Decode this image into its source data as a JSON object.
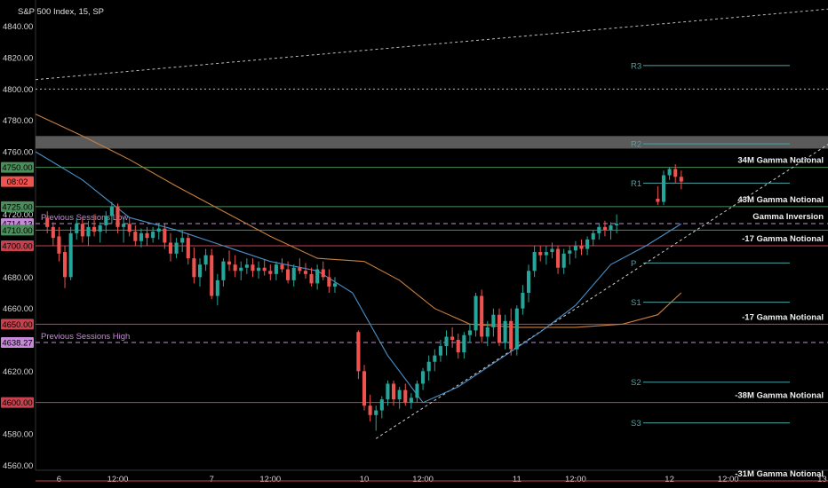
{
  "header": {
    "symbol_title": "S&P 500 Index, 15, SP"
  },
  "colors": {
    "bg": "#000000",
    "up": "#26a69a",
    "down": "#ef5350",
    "ma_fast": "#4a90c8",
    "ma_slow": "#c8803e",
    "pivot": "#4fa3a3",
    "gamma_green": "#4a8f5a",
    "gamma_red": "#c8424e",
    "session_label": "#c58bd6"
  },
  "price_axis": {
    "min": 4550,
    "max": 4850,
    "ticks": [
      "4840.00",
      "4820.00",
      "4800.00",
      "4780.00",
      "4760.00",
      "4740.00",
      "4720.00",
      "4700.00",
      "4680.00",
      "4660.00",
      "4640.00",
      "4620.00",
      "4600.00",
      "4580.00",
      "4560.00"
    ],
    "tick_values": [
      4840,
      4820,
      4800,
      4780,
      4760,
      4740,
      4720,
      4700,
      4680,
      4660,
      4640,
      4620,
      4600,
      4580,
      4560
    ]
  },
  "time_axis": {
    "ticks": [
      {
        "label": "6",
        "idx": 2
      },
      {
        "label": "12:00",
        "idx": 12
      },
      {
        "label": "7",
        "idx": 28
      },
      {
        "label": "12:00",
        "idx": 38
      },
      {
        "label": "10",
        "idx": 54
      },
      {
        "label": "12:00",
        "idx": 64
      },
      {
        "label": "11",
        "idx": 80
      },
      {
        "label": "12:00",
        "idx": 90
      },
      {
        "label": "12",
        "idx": 106
      },
      {
        "label": "12:00",
        "idx": 116
      },
      {
        "label": "13",
        "idx": 132
      }
    ]
  },
  "price_badges": [
    {
      "value": 4750.0,
      "text": "4750.00",
      "color": "#4a8f5a"
    },
    {
      "value": 4741.0,
      "text": "08:02",
      "color": "#ef5350"
    },
    {
      "value": 4725.0,
      "text": "4725.00",
      "color": "#4a8f5a"
    },
    {
      "value": 4714.13,
      "text": "4714.13",
      "color": "#c58bd6"
    },
    {
      "value": 4710.0,
      "text": "4710.00",
      "color": "#4a8f5a"
    },
    {
      "value": 4700.0,
      "text": "4700.00",
      "color": "#c8424e"
    },
    {
      "value": 4650.0,
      "text": "4650.00",
      "color": "#c8424e"
    },
    {
      "value": 4638.27,
      "text": "4638.27",
      "color": "#c58bd6"
    },
    {
      "value": 4600.0,
      "text": "4600.00",
      "color": "#c8424e"
    }
  ],
  "gamma_levels": [
    {
      "value": 4750,
      "label": "34M Gamma Notional",
      "color": "#4a8f5a"
    },
    {
      "value": 4725,
      "label": "43M Gamma Notional",
      "color": "#4a8f5a"
    },
    {
      "value": 4714.13,
      "label": "Gamma Inversion",
      "color": "#c58bd6",
      "dashed": true
    },
    {
      "value": 4710,
      "label": "",
      "color": "#4a8f5a"
    },
    {
      "value": 4700,
      "label": "-17 Gamma Notional",
      "color": "#c8424e"
    },
    {
      "value": 4650,
      "label": "-17 Gamma Notional",
      "color": "#c8424e"
    },
    {
      "value": 4600,
      "label": "-38M Gamma Notional",
      "color": "#c8424e"
    },
    {
      "value": 4550,
      "label": "-31M Gamma Notional",
      "color": "#c8424e"
    }
  ],
  "session_lines": [
    {
      "value": 4714.13,
      "label": "Previous Sessions Low"
    },
    {
      "value": 4638.27,
      "label": "Previous Sessions High"
    }
  ],
  "pivots": [
    {
      "value": 4815,
      "label": "R3"
    },
    {
      "value": 4765,
      "label": "R2"
    },
    {
      "value": 4740,
      "label": "R1"
    },
    {
      "value": 4689,
      "label": "P"
    },
    {
      "value": 4664,
      "label": "S1"
    },
    {
      "value": 4613,
      "label": "S2"
    },
    {
      "value": 4587,
      "label": "S3"
    }
  ],
  "chart_data": {
    "type": "candlestick",
    "title": "S&P 500 Index, 15, SP",
    "ylim": [
      4550,
      4850
    ],
    "x_range_idx": [
      -2,
      133
    ],
    "candles": [
      [
        4718,
        4722,
        4708,
        4712
      ],
      [
        4712,
        4715,
        4700,
        4705
      ],
      [
        4706,
        4712,
        4690,
        4695
      ],
      [
        4696,
        4700,
        4673,
        4680
      ],
      [
        4680,
        4712,
        4678,
        4708
      ],
      [
        4708,
        4718,
        4704,
        4714
      ],
      [
        4714,
        4718,
        4702,
        4706
      ],
      [
        4706,
        4716,
        4700,
        4712
      ],
      [
        4712,
        4720,
        4706,
        4709
      ],
      [
        4709,
        4715,
        4702,
        4713
      ],
      [
        4713,
        4722,
        4708,
        4719
      ],
      [
        4719,
        4728,
        4714,
        4725
      ],
      [
        4725,
        4727,
        4708,
        4712
      ],
      [
        4712,
        4718,
        4702,
        4714
      ],
      [
        4714,
        4718,
        4706,
        4709
      ],
      [
        4709,
        4713,
        4700,
        4703
      ],
      [
        4703,
        4711,
        4699,
        4708
      ],
      [
        4708,
        4712,
        4700,
        4705
      ],
      [
        4705,
        4712,
        4702,
        4709
      ],
      [
        4709,
        4714,
        4704,
        4711
      ],
      [
        4711,
        4714,
        4698,
        4702
      ],
      [
        4702,
        4708,
        4690,
        4695
      ],
      [
        4695,
        4705,
        4692,
        4702
      ],
      [
        4702,
        4710,
        4696,
        4705
      ],
      [
        4705,
        4708,
        4688,
        4692
      ],
      [
        4692,
        4699,
        4676,
        4680
      ],
      [
        4680,
        4692,
        4674,
        4688
      ],
      [
        4688,
        4698,
        4684,
        4694
      ],
      [
        4694,
        4698,
        4666,
        4668
      ],
      [
        4668,
        4682,
        4662,
        4678
      ],
      [
        4678,
        4692,
        4674,
        4690
      ],
      [
        4690,
        4697,
        4684,
        4688
      ],
      [
        4688,
        4694,
        4680,
        4684
      ],
      [
        4684,
        4690,
        4678,
        4686
      ],
      [
        4686,
        4692,
        4682,
        4688
      ],
      [
        4688,
        4692,
        4680,
        4684
      ],
      [
        4684,
        4690,
        4679,
        4686
      ],
      [
        4686,
        4691,
        4681,
        4684
      ],
      [
        4684,
        4688,
        4678,
        4682
      ],
      [
        4682,
        4690,
        4678,
        4688
      ],
      [
        4688,
        4692,
        4683,
        4685
      ],
      [
        4685,
        4690,
        4676,
        4678
      ],
      [
        4678,
        4688,
        4674,
        4686
      ],
      [
        4686,
        4692,
        4682,
        4684
      ],
      [
        4684,
        4689,
        4679,
        4682
      ],
      [
        4682,
        4686,
        4674,
        4676
      ],
      [
        4676,
        4688,
        4672,
        4685
      ],
      [
        4685,
        4690,
        4678,
        4680
      ],
      [
        4680,
        4685,
        4670,
        4674
      ],
      [
        4674,
        4680,
        4670,
        4676
      ],
      [
        4645,
        4646,
        4615,
        4620
      ],
      [
        4620,
        4624,
        4595,
        4598
      ],
      [
        4598,
        4605,
        4588,
        4592
      ],
      [
        4592,
        4598,
        4582,
        4595
      ],
      [
        4595,
        4604,
        4590,
        4602
      ],
      [
        4602,
        4614,
        4598,
        4612
      ],
      [
        4612,
        4614,
        4598,
        4602
      ],
      [
        4602,
        4610,
        4596,
        4608
      ],
      [
        4608,
        4612,
        4598,
        4600
      ],
      [
        4600,
        4606,
        4596,
        4603
      ],
      [
        4603,
        4614,
        4600,
        4612
      ],
      [
        4612,
        4622,
        4608,
        4620
      ],
      [
        4620,
        4630,
        4614,
        4626
      ],
      [
        4626,
        4634,
        4620,
        4630
      ],
      [
        4630,
        4640,
        4626,
        4636
      ],
      [
        4636,
        4646,
        4630,
        4642
      ],
      [
        4642,
        4648,
        4635,
        4640
      ],
      [
        4640,
        4644,
        4628,
        4632
      ],
      [
        4632,
        4645,
        4628,
        4643
      ],
      [
        4643,
        4650,
        4638,
        4646
      ],
      [
        4646,
        4670,
        4642,
        4668
      ],
      [
        4668,
        4672,
        4638,
        4642
      ],
      [
        4642,
        4652,
        4636,
        4648
      ],
      [
        4648,
        4660,
        4642,
        4656
      ],
      [
        4656,
        4660,
        4636,
        4638
      ],
      [
        4638,
        4656,
        4634,
        4652
      ],
      [
        4652,
        4660,
        4630,
        4634
      ],
      [
        4634,
        4662,
        4630,
        4660
      ],
      [
        4660,
        4675,
        4656,
        4670
      ],
      [
        4670,
        4688,
        4664,
        4684
      ],
      [
        4684,
        4700,
        4680,
        4696
      ],
      [
        4696,
        4700,
        4690,
        4694
      ],
      [
        4694,
        4700,
        4688,
        4696
      ],
      [
        4696,
        4702,
        4692,
        4698
      ],
      [
        4698,
        4700,
        4682,
        4686
      ],
      [
        4686,
        4698,
        4682,
        4695
      ],
      [
        4695,
        4700,
        4688,
        4697
      ],
      [
        4697,
        4703,
        4692,
        4700
      ],
      [
        4700,
        4704,
        4694,
        4698
      ],
      [
        4698,
        4706,
        4694,
        4704
      ],
      [
        4704,
        4710,
        4700,
        4708
      ],
      [
        4708,
        4714,
        4704,
        4712
      ],
      [
        4712,
        4716,
        4706,
        4710
      ],
      [
        4710,
        4715,
        4704,
        4713
      ],
      [
        4713,
        4720,
        4708,
        4714
      ],
      [
        4730,
        4738,
        4726,
        4728
      ],
      [
        4728,
        4748,
        4726,
        4745
      ],
      [
        4745,
        4750,
        4742,
        4749
      ],
      [
        4749,
        4752,
        4740,
        4744
      ],
      [
        4744,
        4748,
        4736,
        4741
      ]
    ],
    "candle_idx_map": [
      0,
      1,
      2,
      3,
      4,
      5,
      6,
      7,
      8,
      9,
      10,
      11,
      12,
      13,
      14,
      15,
      16,
      17,
      18,
      19,
      20,
      21,
      22,
      23,
      24,
      25,
      26,
      27,
      28,
      29,
      30,
      31,
      32,
      33,
      34,
      35,
      36,
      37,
      38,
      39,
      40,
      41,
      42,
      43,
      44,
      45,
      46,
      47,
      48,
      49,
      53,
      54,
      55,
      56,
      57,
      58,
      59,
      60,
      61,
      62,
      63,
      64,
      65,
      66,
      67,
      68,
      69,
      70,
      71,
      72,
      73,
      74,
      75,
      76,
      77,
      78,
      79,
      80,
      81,
      82,
      83,
      84,
      85,
      86,
      87,
      88,
      89,
      90,
      91,
      92,
      93,
      94,
      95,
      96,
      97,
      104,
      105,
      106,
      107,
      108
    ],
    "ma_fast": [
      [
        -2,
        4760
      ],
      [
        6,
        4742
      ],
      [
        14,
        4718
      ],
      [
        22,
        4710
      ],
      [
        30,
        4700
      ],
      [
        38,
        4690
      ],
      [
        46,
        4684
      ],
      [
        52,
        4670
      ],
      [
        58,
        4630
      ],
      [
        64,
        4600
      ],
      [
        70,
        4610
      ],
      [
        78,
        4630
      ],
      [
        84,
        4645
      ],
      [
        90,
        4662
      ],
      [
        96,
        4688
      ],
      [
        102,
        4700
      ],
      [
        108,
        4714
      ]
    ],
    "ma_slow": [
      [
        -2,
        4784
      ],
      [
        6,
        4770
      ],
      [
        14,
        4755
      ],
      [
        22,
        4738
      ],
      [
        30,
        4722
      ],
      [
        38,
        4706
      ],
      [
        46,
        4692
      ],
      [
        54,
        4690
      ],
      [
        60,
        4678
      ],
      [
        66,
        4660
      ],
      [
        72,
        4650
      ],
      [
        80,
        4648
      ],
      [
        90,
        4648
      ],
      [
        98,
        4650
      ],
      [
        104,
        4656
      ],
      [
        108,
        4670
      ]
    ],
    "trendline_up": [
      [
        56,
        4577
      ],
      [
        136,
        4772
      ]
    ],
    "trendline_top": [
      [
        -2,
        4806
      ],
      [
        133,
        4851
      ]
    ],
    "resistance_box": [
      4762,
      4770
    ]
  }
}
